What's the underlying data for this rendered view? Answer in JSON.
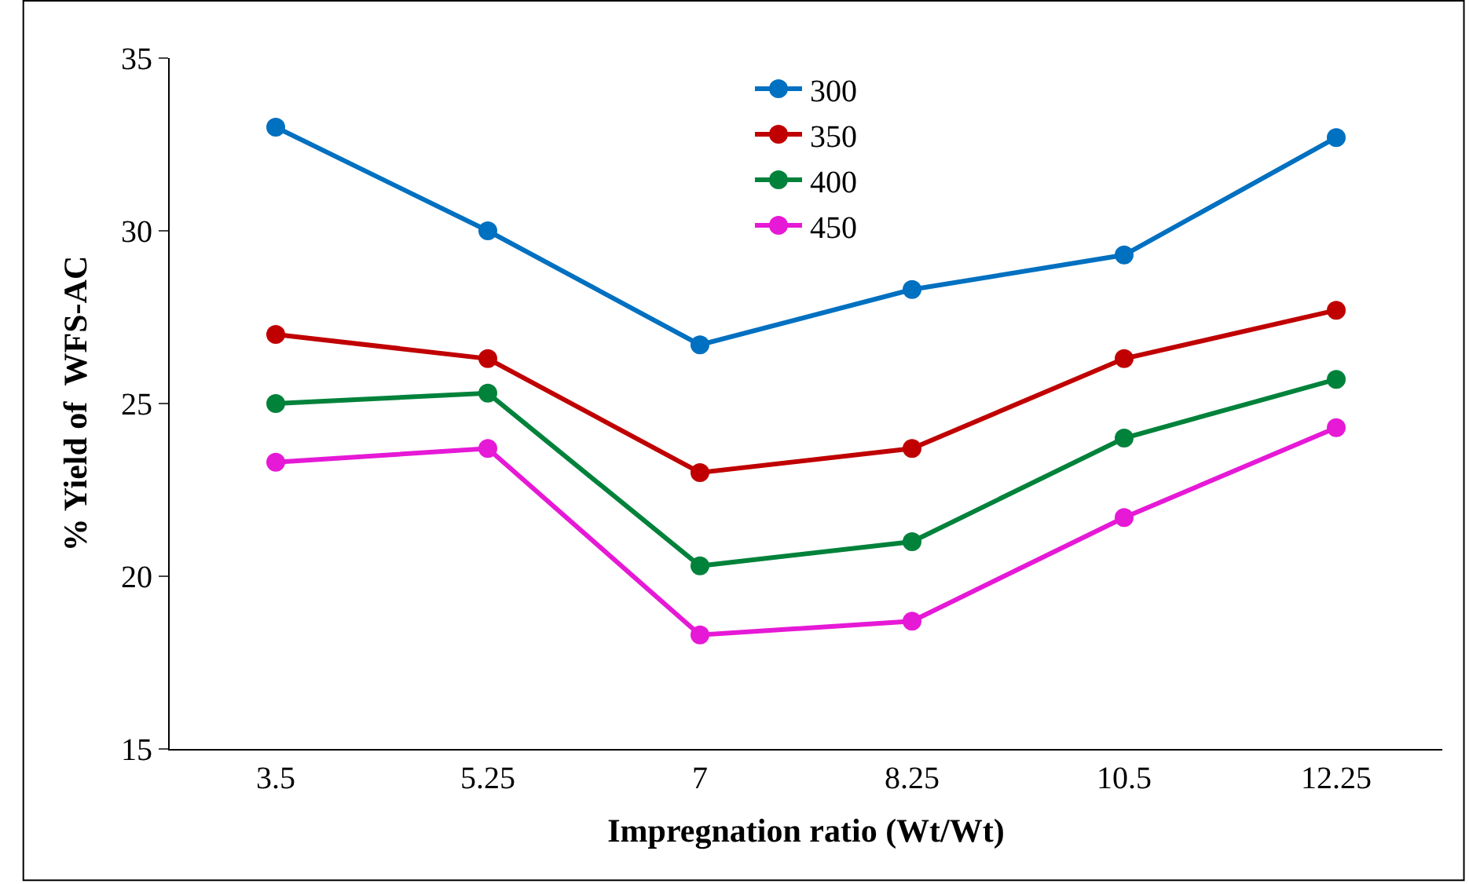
{
  "chart_data": {
    "type": "line",
    "xlabel": "Impregnation ratio (Wt/Wt)",
    "ylabel": "% Yield of  WFS-AC",
    "categories": [
      "3.5",
      "5.25",
      "7",
      "8.25",
      "10.5",
      "12.25"
    ],
    "series": [
      {
        "name": "300",
        "color": "#0070c0",
        "values": [
          33,
          30,
          26.7,
          28.3,
          29.3,
          32.7
        ]
      },
      {
        "name": "350",
        "color": "#c00000",
        "values": [
          27,
          26.3,
          23,
          23.7,
          26.3,
          27.7
        ]
      },
      {
        "name": "400",
        "color": "#00823b",
        "values": [
          25,
          25.3,
          20.3,
          21,
          24,
          25.7
        ]
      },
      {
        "name": "450",
        "color": "#e619d6",
        "values": [
          23.3,
          23.7,
          18.3,
          18.7,
          21.7,
          24.3
        ]
      }
    ],
    "ylim": [
      15,
      35
    ],
    "yticks": [
      15,
      20,
      25,
      30,
      35
    ],
    "legend": "top",
    "marker": "circle",
    "line_style": "solid"
  }
}
